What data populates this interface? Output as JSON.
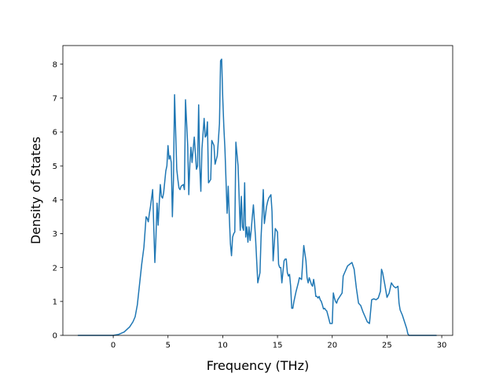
{
  "chart_data": {
    "type": "line",
    "title": "",
    "xlabel": "Frequency (THz)",
    "ylabel": "Density of States",
    "xlim": [
      -4.6,
      31.0
    ],
    "ylim": [
      0,
      8.55
    ],
    "xticks": [
      0,
      5,
      10,
      15,
      20,
      25,
      30
    ],
    "yticks": [
      0,
      1,
      2,
      3,
      4,
      5,
      6,
      7,
      8
    ],
    "grid": false,
    "legend": "none",
    "series": [
      {
        "color": "#1f77b4",
        "x": [
          -3.2,
          0.0,
          0.5,
          1.0,
          1.5,
          1.8,
          2.0,
          2.2,
          2.4,
          2.6,
          2.7,
          2.8,
          3.0,
          3.1,
          3.2,
          3.3,
          3.4,
          3.6,
          3.7,
          3.8,
          3.9,
          4.0,
          4.1,
          4.2,
          4.3,
          4.4,
          4.5,
          4.6,
          4.8,
          4.9,
          5.0,
          5.1,
          5.2,
          5.3,
          5.4,
          5.5,
          5.6,
          5.8,
          5.9,
          6.0,
          6.1,
          6.2,
          6.4,
          6.5,
          6.6,
          6.8,
          6.9,
          7.0,
          7.1,
          7.2,
          7.3,
          7.4,
          7.6,
          7.7,
          7.8,
          7.9,
          8.0,
          8.1,
          8.3,
          8.4,
          8.5,
          8.6,
          8.7,
          8.9,
          9.0,
          9.2,
          9.3,
          9.5,
          9.6,
          9.7,
          9.8,
          9.9,
          10.0,
          10.1,
          10.2,
          10.3,
          10.4,
          10.5,
          10.6,
          10.7,
          10.8,
          10.9,
          11.0,
          11.1,
          11.2,
          11.4,
          11.6,
          11.7,
          11.8,
          11.9,
          12.0,
          12.1,
          12.2,
          12.3,
          12.4,
          12.5,
          12.6,
          12.7,
          12.8,
          13.0,
          13.2,
          13.4,
          13.5,
          13.6,
          13.7,
          13.8,
          14.0,
          14.1,
          14.2,
          14.3,
          14.4,
          14.5,
          14.6,
          14.8,
          14.9,
          15.0,
          15.1,
          15.2,
          15.3,
          15.4,
          15.6,
          15.7,
          15.8,
          15.9,
          16.0,
          16.1,
          16.2,
          16.3,
          16.4,
          16.5,
          16.7,
          16.9,
          17.0,
          17.2,
          17.4,
          17.6,
          17.7,
          17.8,
          17.9,
          18.0,
          18.1,
          18.2,
          18.3,
          18.4,
          18.5,
          18.6,
          18.7,
          18.8,
          18.9,
          19.0,
          19.1,
          19.2,
          19.3,
          19.4,
          19.5,
          19.6,
          19.8,
          20.0,
          20.1,
          20.2,
          20.3,
          20.4,
          20.5,
          20.7,
          20.9,
          21.0,
          21.2,
          21.4,
          21.6,
          21.8,
          22.0,
          22.2,
          22.4,
          22.6,
          22.8,
          23.0,
          23.2,
          23.4,
          23.5,
          23.6,
          23.8,
          24.0,
          24.2,
          24.4,
          24.5,
          24.6,
          24.8,
          25.0,
          25.2,
          25.4,
          25.6,
          25.8,
          26.0,
          26.1,
          26.2,
          26.4,
          26.6,
          26.8,
          26.9,
          27.0,
          29.5
        ],
        "y": [
          0.0,
          0.0,
          0.03,
          0.1,
          0.25,
          0.4,
          0.55,
          0.9,
          1.5,
          2.1,
          2.35,
          2.6,
          3.5,
          3.45,
          3.35,
          3.6,
          3.8,
          4.3,
          3.2,
          2.15,
          2.9,
          3.9,
          3.25,
          3.9,
          4.45,
          4.1,
          4.05,
          4.2,
          4.85,
          5.0,
          5.6,
          5.2,
          5.3,
          5.1,
          3.5,
          4.6,
          7.1,
          4.9,
          4.6,
          4.35,
          4.3,
          4.4,
          4.45,
          4.3,
          6.95,
          5.6,
          4.15,
          5.1,
          5.55,
          5.1,
          5.5,
          5.85,
          4.9,
          5.0,
          6.8,
          5.0,
          4.25,
          5.5,
          6.4,
          5.85,
          5.9,
          6.3,
          4.5,
          4.6,
          5.75,
          5.6,
          5.05,
          5.3,
          5.75,
          6.25,
          8.1,
          8.15,
          7.0,
          6.15,
          5.5,
          4.55,
          3.6,
          4.4,
          3.5,
          2.7,
          2.35,
          2.9,
          3.0,
          3.05,
          5.7,
          5.0,
          3.1,
          4.1,
          3.2,
          3.1,
          4.5,
          2.9,
          3.2,
          2.75,
          3.2,
          2.8,
          3.1,
          3.5,
          3.85,
          2.85,
          1.55,
          1.85,
          2.9,
          3.55,
          4.3,
          3.3,
          3.8,
          3.95,
          4.05,
          4.1,
          4.15,
          3.65,
          2.2,
          3.15,
          3.1,
          3.05,
          2.1,
          2.0,
          2.0,
          1.55,
          2.2,
          2.25,
          2.25,
          1.85,
          1.75,
          1.8,
          1.45,
          0.8,
          0.8,
          1.0,
          1.3,
          1.55,
          1.7,
          1.65,
          2.65,
          2.2,
          1.7,
          1.55,
          1.7,
          1.6,
          1.5,
          1.45,
          1.65,
          1.45,
          1.15,
          1.15,
          1.1,
          1.15,
          1.05,
          1.0,
          0.9,
          0.78,
          0.8,
          0.75,
          0.72,
          0.6,
          0.35,
          0.35,
          1.25,
          1.1,
          1.0,
          0.95,
          1.05,
          1.15,
          1.25,
          1.75,
          1.9,
          2.05,
          2.1,
          2.15,
          1.95,
          1.4,
          0.95,
          0.88,
          0.7,
          0.55,
          0.4,
          0.35,
          0.7,
          1.05,
          1.08,
          1.05,
          1.1,
          1.3,
          1.95,
          1.85,
          1.5,
          1.12,
          1.25,
          1.55,
          1.45,
          1.4,
          1.45,
          0.95,
          0.75,
          0.6,
          0.4,
          0.2,
          0.05,
          0.0,
          0.0
        ]
      }
    ]
  }
}
